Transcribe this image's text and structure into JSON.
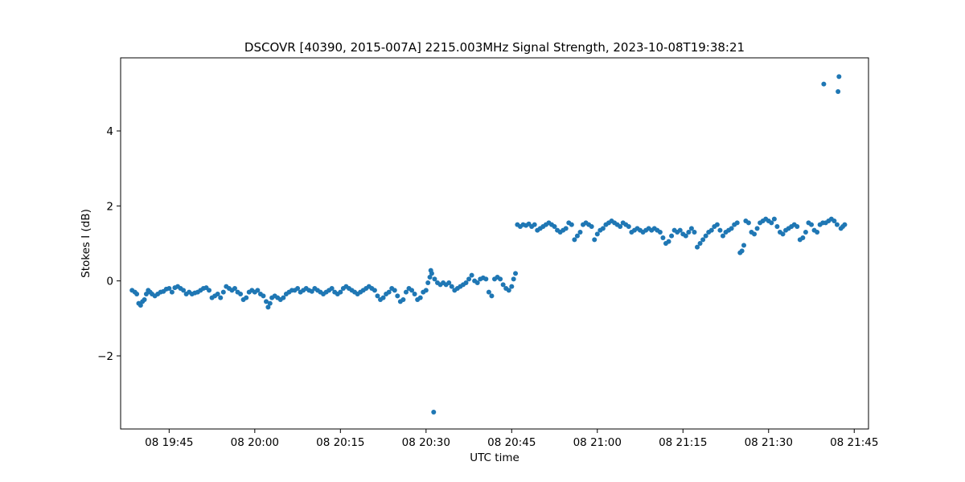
{
  "chart_data": {
    "type": "scatter",
    "title": "DSCOVR [40390, 2015-007A] 2215.003MHz Signal Strength, 2023-10-08T19:38:21",
    "xlabel": "UTC time",
    "ylabel": "Stokes I (dB)",
    "marker_color": "#1f77b4",
    "grid": false,
    "legend": "none",
    "x_unit": "UTC time, 2023-10-08",
    "xlim": [
      "2023-10-08T19:36:30",
      "2023-10-08T21:47:30"
    ],
    "ylim": [
      -3.95,
      5.95
    ],
    "x_ticks": [
      {
        "time": "2023-10-08T19:45:00",
        "label": "08 19:45"
      },
      {
        "time": "2023-10-08T20:00:00",
        "label": "08 20:00"
      },
      {
        "time": "2023-10-08T20:15:00",
        "label": "08 20:15"
      },
      {
        "time": "2023-10-08T20:30:00",
        "label": "08 20:30"
      },
      {
        "time": "2023-10-08T20:45:00",
        "label": "08 20:45"
      },
      {
        "time": "2023-10-08T21:00:00",
        "label": "08 21:00"
      },
      {
        "time": "2023-10-08T21:15:00",
        "label": "08 21:15"
      },
      {
        "time": "2023-10-08T21:30:00",
        "label": "08 21:30"
      },
      {
        "time": "2023-10-08T21:45:00",
        "label": "08 21:45"
      }
    ],
    "y_ticks": [
      {
        "value": -2,
        "label": "−2"
      },
      {
        "value": 0,
        "label": "0"
      },
      {
        "value": 2,
        "label": "2"
      },
      {
        "value": 4,
        "label": "4"
      }
    ],
    "series": [
      {
        "points": [
          [
            "19:38:30",
            -0.25
          ],
          [
            "19:39:00",
            -0.3
          ],
          [
            "19:39:20",
            -0.35
          ],
          [
            "19:39:40",
            -0.6
          ],
          [
            "19:40:00",
            -0.65
          ],
          [
            "19:40:20",
            -0.55
          ],
          [
            "19:40:40",
            -0.5
          ],
          [
            "19:41:00",
            -0.35
          ],
          [
            "19:41:20",
            -0.25
          ],
          [
            "19:41:40",
            -0.3
          ],
          [
            "19:42:00",
            -0.35
          ],
          [
            "19:42:30",
            -0.4
          ],
          [
            "19:43:00",
            -0.35
          ],
          [
            "19:43:30",
            -0.3
          ],
          [
            "19:44:00",
            -0.28
          ],
          [
            "19:44:30",
            -0.22
          ],
          [
            "19:45:00",
            -0.2
          ],
          [
            "19:45:30",
            -0.3
          ],
          [
            "19:46:00",
            -0.18
          ],
          [
            "19:46:30",
            -0.15
          ],
          [
            "19:47:00",
            -0.2
          ],
          [
            "19:47:30",
            -0.25
          ],
          [
            "19:48:00",
            -0.35
          ],
          [
            "19:48:30",
            -0.3
          ],
          [
            "19:49:00",
            -0.35
          ],
          [
            "19:49:30",
            -0.32
          ],
          [
            "19:50:00",
            -0.3
          ],
          [
            "19:50:30",
            -0.25
          ],
          [
            "19:51:00",
            -0.2
          ],
          [
            "19:51:30",
            -0.18
          ],
          [
            "19:52:00",
            -0.25
          ],
          [
            "19:52:30",
            -0.45
          ],
          [
            "19:53:00",
            -0.4
          ],
          [
            "19:53:30",
            -0.35
          ],
          [
            "19:54:00",
            -0.45
          ],
          [
            "19:54:30",
            -0.3
          ],
          [
            "19:55:00",
            -0.15
          ],
          [
            "19:55:30",
            -0.2
          ],
          [
            "19:56:00",
            -0.25
          ],
          [
            "19:56:30",
            -0.2
          ],
          [
            "19:57:00",
            -0.3
          ],
          [
            "19:57:30",
            -0.35
          ],
          [
            "19:58:00",
            -0.5
          ],
          [
            "19:58:30",
            -0.45
          ],
          [
            "19:59:00",
            -0.3
          ],
          [
            "19:59:30",
            -0.25
          ],
          [
            "20:00:00",
            -0.3
          ],
          [
            "20:00:30",
            -0.25
          ],
          [
            "20:01:00",
            -0.35
          ],
          [
            "20:01:30",
            -0.4
          ],
          [
            "20:02:00",
            -0.55
          ],
          [
            "20:02:20",
            -0.7
          ],
          [
            "20:02:40",
            -0.6
          ],
          [
            "20:03:00",
            -0.45
          ],
          [
            "20:03:30",
            -0.4
          ],
          [
            "20:04:00",
            -0.45
          ],
          [
            "20:04:30",
            -0.5
          ],
          [
            "20:05:00",
            -0.45
          ],
          [
            "20:05:30",
            -0.35
          ],
          [
            "20:06:00",
            -0.3
          ],
          [
            "20:06:30",
            -0.25
          ],
          [
            "20:07:00",
            -0.25
          ],
          [
            "20:07:30",
            -0.2
          ],
          [
            "20:08:00",
            -0.3
          ],
          [
            "20:08:30",
            -0.25
          ],
          [
            "20:09:00",
            -0.2
          ],
          [
            "20:09:30",
            -0.25
          ],
          [
            "20:10:00",
            -0.28
          ],
          [
            "20:10:30",
            -0.2
          ],
          [
            "20:11:00",
            -0.25
          ],
          [
            "20:11:30",
            -0.3
          ],
          [
            "20:12:00",
            -0.35
          ],
          [
            "20:12:30",
            -0.3
          ],
          [
            "20:13:00",
            -0.25
          ],
          [
            "20:13:30",
            -0.2
          ],
          [
            "20:14:00",
            -0.3
          ],
          [
            "20:14:30",
            -0.35
          ],
          [
            "20:15:00",
            -0.3
          ],
          [
            "20:15:30",
            -0.2
          ],
          [
            "20:16:00",
            -0.15
          ],
          [
            "20:16:30",
            -0.2
          ],
          [
            "20:17:00",
            -0.25
          ],
          [
            "20:17:30",
            -0.3
          ],
          [
            "20:18:00",
            -0.35
          ],
          [
            "20:18:30",
            -0.3
          ],
          [
            "20:19:00",
            -0.25
          ],
          [
            "20:19:30",
            -0.2
          ],
          [
            "20:20:00",
            -0.15
          ],
          [
            "20:20:30",
            -0.2
          ],
          [
            "20:21:00",
            -0.25
          ],
          [
            "20:21:30",
            -0.4
          ],
          [
            "20:22:00",
            -0.5
          ],
          [
            "20:22:30",
            -0.45
          ],
          [
            "20:23:00",
            -0.35
          ],
          [
            "20:23:30",
            -0.3
          ],
          [
            "20:24:00",
            -0.2
          ],
          [
            "20:24:30",
            -0.25
          ],
          [
            "20:25:00",
            -0.4
          ],
          [
            "20:25:30",
            -0.55
          ],
          [
            "20:26:00",
            -0.5
          ],
          [
            "20:26:30",
            -0.3
          ],
          [
            "20:27:00",
            -0.2
          ],
          [
            "20:27:30",
            -0.25
          ],
          [
            "20:28:00",
            -0.35
          ],
          [
            "20:28:30",
            -0.5
          ],
          [
            "20:29:00",
            -0.45
          ],
          [
            "20:29:30",
            -0.3
          ],
          [
            "20:30:00",
            -0.25
          ],
          [
            "20:30:20",
            -0.05
          ],
          [
            "20:30:40",
            0.1
          ],
          [
            "20:30:50",
            0.28
          ],
          [
            "20:31:00",
            0.2
          ],
          [
            "20:31:20",
            -3.5
          ],
          [
            "20:31:30",
            0.05
          ],
          [
            "20:32:00",
            -0.05
          ],
          [
            "20:32:30",
            -0.1
          ],
          [
            "20:33:00",
            -0.05
          ],
          [
            "20:33:30",
            -0.1
          ],
          [
            "20:34:00",
            -0.05
          ],
          [
            "20:34:30",
            -0.15
          ],
          [
            "20:35:00",
            -0.25
          ],
          [
            "20:35:30",
            -0.2
          ],
          [
            "20:36:00",
            -0.15
          ],
          [
            "20:36:30",
            -0.1
          ],
          [
            "20:37:00",
            -0.05
          ],
          [
            "20:37:30",
            0.05
          ],
          [
            "20:38:00",
            0.15
          ],
          [
            "20:38:30",
            0.0
          ],
          [
            "20:39:00",
            -0.05
          ],
          [
            "20:39:30",
            0.05
          ],
          [
            "20:40:00",
            0.08
          ],
          [
            "20:40:30",
            0.05
          ],
          [
            "20:41:00",
            -0.3
          ],
          [
            "20:41:30",
            -0.4
          ],
          [
            "20:42:00",
            0.05
          ],
          [
            "20:42:30",
            0.1
          ],
          [
            "20:43:00",
            0.05
          ],
          [
            "20:43:30",
            -0.1
          ],
          [
            "20:44:00",
            -0.2
          ],
          [
            "20:44:30",
            -0.25
          ],
          [
            "20:45:00",
            -0.15
          ],
          [
            "20:45:20",
            0.05
          ],
          [
            "20:45:40",
            0.2
          ],
          [
            "20:46:00",
            1.5
          ],
          [
            "20:46:30",
            1.45
          ],
          [
            "20:47:00",
            1.5
          ],
          [
            "20:47:30",
            1.48
          ],
          [
            "20:48:00",
            1.52
          ],
          [
            "20:48:30",
            1.45
          ],
          [
            "20:49:00",
            1.5
          ],
          [
            "20:49:30",
            1.35
          ],
          [
            "20:50:00",
            1.4
          ],
          [
            "20:50:30",
            1.45
          ],
          [
            "20:51:00",
            1.5
          ],
          [
            "20:51:30",
            1.55
          ],
          [
            "20:52:00",
            1.5
          ],
          [
            "20:52:30",
            1.45
          ],
          [
            "20:53:00",
            1.35
          ],
          [
            "20:53:30",
            1.3
          ],
          [
            "20:54:00",
            1.35
          ],
          [
            "20:54:30",
            1.4
          ],
          [
            "20:55:00",
            1.55
          ],
          [
            "20:55:30",
            1.5
          ],
          [
            "20:56:00",
            1.1
          ],
          [
            "20:56:30",
            1.2
          ],
          [
            "20:57:00",
            1.3
          ],
          [
            "20:57:30",
            1.5
          ],
          [
            "20:58:00",
            1.55
          ],
          [
            "20:58:30",
            1.5
          ],
          [
            "20:59:00",
            1.45
          ],
          [
            "20:59:30",
            1.1
          ],
          [
            "21:00:00",
            1.25
          ],
          [
            "21:00:30",
            1.35
          ],
          [
            "21:01:00",
            1.4
          ],
          [
            "21:01:30",
            1.5
          ],
          [
            "21:02:00",
            1.55
          ],
          [
            "21:02:30",
            1.6
          ],
          [
            "21:03:00",
            1.55
          ],
          [
            "21:03:30",
            1.5
          ],
          [
            "21:04:00",
            1.45
          ],
          [
            "21:04:30",
            1.55
          ],
          [
            "21:05:00",
            1.5
          ],
          [
            "21:05:30",
            1.45
          ],
          [
            "21:06:00",
            1.3
          ],
          [
            "21:06:30",
            1.35
          ],
          [
            "21:07:00",
            1.4
          ],
          [
            "21:07:30",
            1.35
          ],
          [
            "21:08:00",
            1.3
          ],
          [
            "21:08:30",
            1.35
          ],
          [
            "21:09:00",
            1.4
          ],
          [
            "21:09:30",
            1.35
          ],
          [
            "21:10:00",
            1.4
          ],
          [
            "21:10:30",
            1.35
          ],
          [
            "21:11:00",
            1.3
          ],
          [
            "21:11:30",
            1.15
          ],
          [
            "21:12:00",
            1.0
          ],
          [
            "21:12:30",
            1.05
          ],
          [
            "21:13:00",
            1.2
          ],
          [
            "21:13:30",
            1.35
          ],
          [
            "21:14:00",
            1.3
          ],
          [
            "21:14:30",
            1.35
          ],
          [
            "21:15:00",
            1.25
          ],
          [
            "21:15:30",
            1.2
          ],
          [
            "21:16:00",
            1.3
          ],
          [
            "21:16:30",
            1.4
          ],
          [
            "21:17:00",
            1.3
          ],
          [
            "21:17:30",
            0.9
          ],
          [
            "21:18:00",
            1.0
          ],
          [
            "21:18:30",
            1.1
          ],
          [
            "21:19:00",
            1.2
          ],
          [
            "21:19:30",
            1.3
          ],
          [
            "21:20:00",
            1.35
          ],
          [
            "21:20:30",
            1.45
          ],
          [
            "21:21:00",
            1.5
          ],
          [
            "21:21:30",
            1.35
          ],
          [
            "21:22:00",
            1.2
          ],
          [
            "21:22:30",
            1.3
          ],
          [
            "21:23:00",
            1.35
          ],
          [
            "21:23:30",
            1.4
          ],
          [
            "21:24:00",
            1.5
          ],
          [
            "21:24:30",
            1.55
          ],
          [
            "21:25:00",
            0.75
          ],
          [
            "21:25:20",
            0.8
          ],
          [
            "21:25:40",
            0.95
          ],
          [
            "21:26:00",
            1.6
          ],
          [
            "21:26:30",
            1.55
          ],
          [
            "21:27:00",
            1.3
          ],
          [
            "21:27:30",
            1.25
          ],
          [
            "21:28:00",
            1.4
          ],
          [
            "21:28:30",
            1.55
          ],
          [
            "21:29:00",
            1.6
          ],
          [
            "21:29:30",
            1.65
          ],
          [
            "21:30:00",
            1.6
          ],
          [
            "21:30:30",
            1.55
          ],
          [
            "21:31:00",
            1.65
          ],
          [
            "21:31:30",
            1.45
          ],
          [
            "21:32:00",
            1.3
          ],
          [
            "21:32:30",
            1.25
          ],
          [
            "21:33:00",
            1.35
          ],
          [
            "21:33:30",
            1.4
          ],
          [
            "21:34:00",
            1.45
          ],
          [
            "21:34:30",
            1.5
          ],
          [
            "21:35:00",
            1.45
          ],
          [
            "21:35:30",
            1.1
          ],
          [
            "21:36:00",
            1.15
          ],
          [
            "21:36:30",
            1.3
          ],
          [
            "21:37:00",
            1.55
          ],
          [
            "21:37:30",
            1.5
          ],
          [
            "21:38:00",
            1.35
          ],
          [
            "21:38:30",
            1.3
          ],
          [
            "21:39:00",
            1.5
          ],
          [
            "21:39:30",
            1.55
          ],
          [
            "21:39:40",
            5.25
          ],
          [
            "21:40:00",
            1.55
          ],
          [
            "21:40:30",
            1.6
          ],
          [
            "21:41:00",
            1.65
          ],
          [
            "21:41:30",
            1.6
          ],
          [
            "21:42:00",
            1.5
          ],
          [
            "21:42:10",
            5.05
          ],
          [
            "21:42:20",
            5.45
          ],
          [
            "21:42:40",
            1.4
          ],
          [
            "21:43:00",
            1.45
          ],
          [
            "21:43:20",
            1.5
          ]
        ]
      }
    ]
  }
}
